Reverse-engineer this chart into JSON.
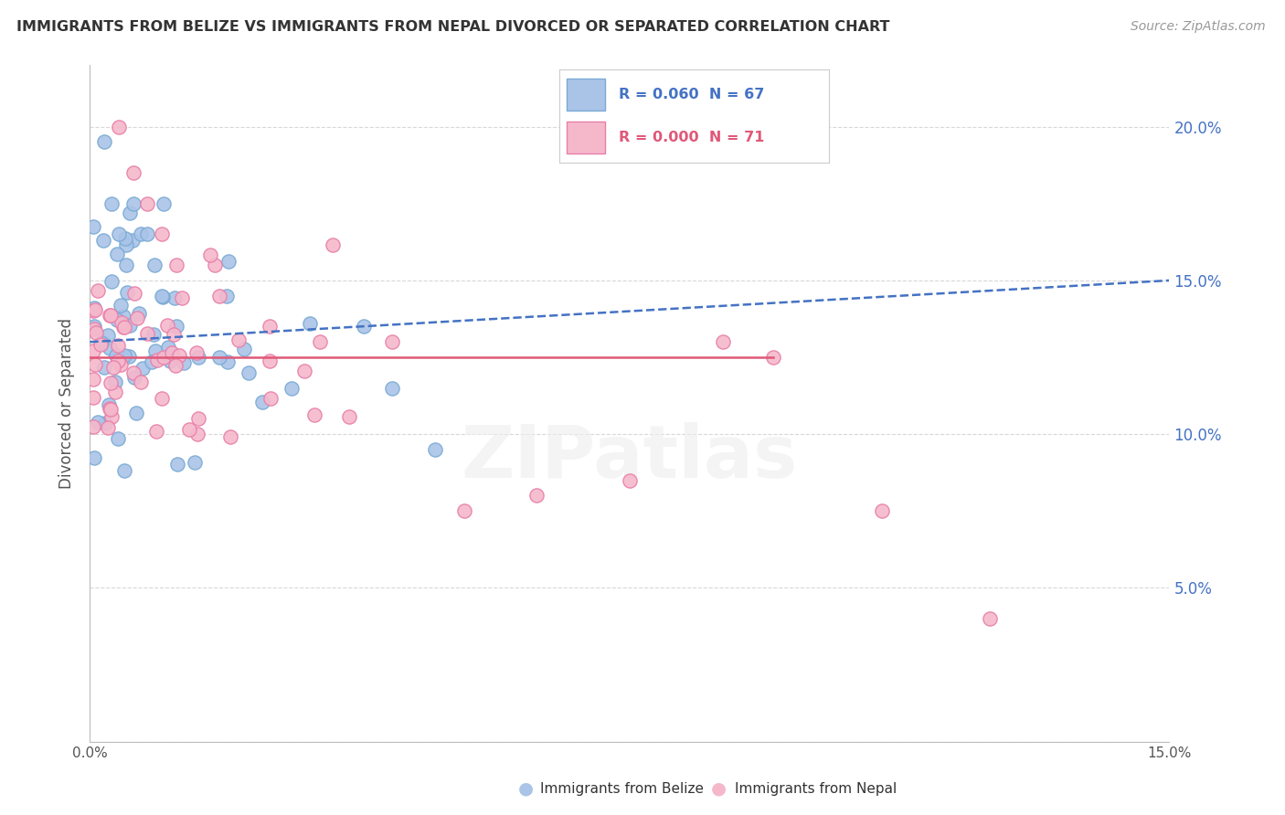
{
  "title": "IMMIGRANTS FROM BELIZE VS IMMIGRANTS FROM NEPAL DIVORCED OR SEPARATED CORRELATION CHART",
  "source": "Source: ZipAtlas.com",
  "ylabel": "Divorced or Separated",
  "xmin": 0.0,
  "xmax": 0.15,
  "ymin": 0.0,
  "ymax": 0.22,
  "belize_color": "#aac4e8",
  "belize_edge_color": "#7aaad4",
  "nepal_color": "#f5b8cb",
  "nepal_edge_color": "#e87fa8",
  "belize_line_color": "#4472c4",
  "nepal_line_color": "#e05878",
  "belize_R": 0.06,
  "belize_N": 67,
  "nepal_R": 0.0,
  "nepal_N": 71,
  "ytick_color": "#4472c4",
  "legend_belize_color": "#4472c4",
  "legend_nepal_color": "#e05878",
  "legend_label1": "Immigrants from Belize",
  "legend_label2": "Immigrants from Nepal",
  "watermark": "ZIPatlas",
  "background_color": "#ffffff",
  "grid_color": "#d8d8d8"
}
